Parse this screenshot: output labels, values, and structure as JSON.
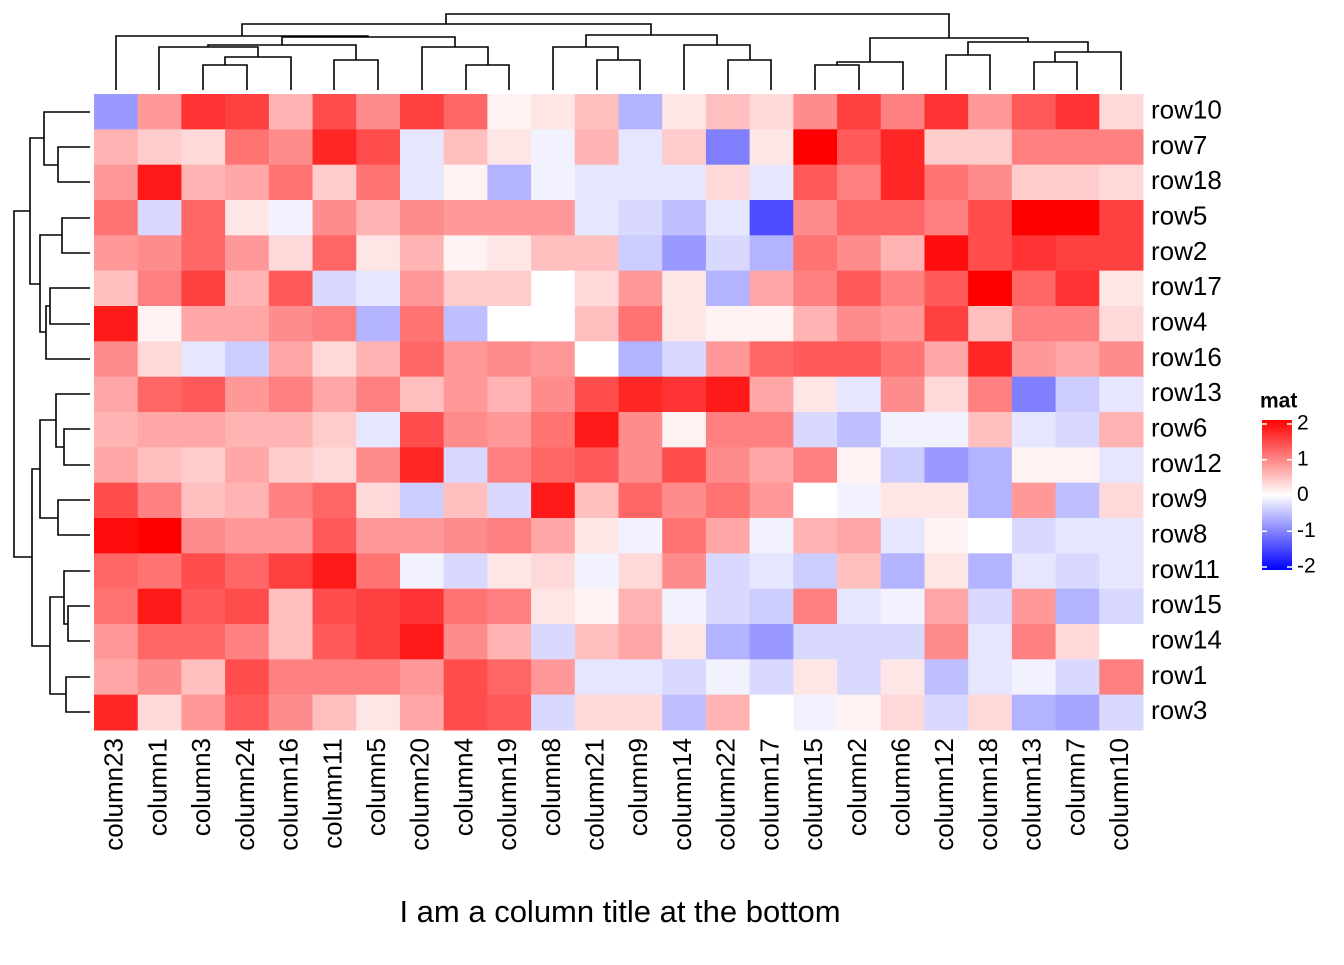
{
  "chart_data": {
    "type": "heatmap",
    "title": "I am a column title at the bottom",
    "legend_title": "mat",
    "x": [
      "column23",
      "column1",
      "column3",
      "column24",
      "column16",
      "column11",
      "column5",
      "column20",
      "column4",
      "column19",
      "column8",
      "column21",
      "column9",
      "column14",
      "column22",
      "column17",
      "column15",
      "column2",
      "column6",
      "column12",
      "column18",
      "column13",
      "column7",
      "column10"
    ],
    "y": [
      "row10",
      "row7",
      "row18",
      "row5",
      "row2",
      "row17",
      "row4",
      "row16",
      "row13",
      "row6",
      "row12",
      "row9",
      "row8",
      "row11",
      "row15",
      "row14",
      "row1",
      "row3"
    ],
    "values": [
      [
        -0.8,
        0.8,
        1.6,
        1.5,
        0.6,
        1.4,
        0.9,
        1.5,
        1.2,
        0.1,
        0.2,
        0.5,
        -0.6,
        0.2,
        0.5,
        0.3,
        0.9,
        1.5,
        1.0,
        1.6,
        0.8,
        1.3,
        1.6,
        0.3
      ],
      [
        0.6,
        0.4,
        0.3,
        1.1,
        0.9,
        1.7,
        1.4,
        -0.2,
        0.5,
        0.2,
        -0.1,
        0.6,
        -0.2,
        0.4,
        -1.0,
        0.2,
        2.0,
        1.3,
        1.7,
        0.4,
        0.4,
        1.0,
        1.0,
        1.0
      ],
      [
        0.8,
        1.8,
        0.6,
        0.7,
        1.1,
        0.4,
        1.1,
        -0.2,
        0.1,
        -0.6,
        -0.1,
        -0.2,
        -0.2,
        -0.2,
        0.3,
        -0.2,
        1.3,
        1.0,
        1.7,
        1.1,
        0.9,
        0.4,
        0.4,
        0.3
      ],
      [
        1.1,
        -0.3,
        1.2,
        0.2,
        -0.1,
        0.9,
        0.6,
        0.9,
        0.8,
        0.8,
        0.8,
        -0.2,
        -0.3,
        -0.5,
        -0.2,
        -1.4,
        0.9,
        1.2,
        1.2,
        1.0,
        1.4,
        2.0,
        2.0,
        1.5
      ],
      [
        0.8,
        0.9,
        1.2,
        0.8,
        0.3,
        1.2,
        0.2,
        0.6,
        0.1,
        0.2,
        0.5,
        0.5,
        -0.4,
        -0.8,
        -0.3,
        -0.6,
        1.1,
        0.9,
        0.6,
        1.9,
        1.4,
        1.6,
        1.5,
        1.5
      ],
      [
        0.5,
        1.0,
        1.5,
        0.6,
        1.3,
        -0.3,
        -0.2,
        0.8,
        0.4,
        0.4,
        0.0,
        0.3,
        0.8,
        0.2,
        -0.6,
        0.7,
        1.0,
        1.3,
        1.0,
        1.3,
        2.0,
        1.2,
        1.6,
        0.2
      ],
      [
        1.8,
        0.1,
        0.7,
        0.7,
        0.9,
        1.0,
        -0.6,
        1.1,
        -0.5,
        0.0,
        0.0,
        0.5,
        1.1,
        0.2,
        0.1,
        0.1,
        0.6,
        0.9,
        0.8,
        1.5,
        0.5,
        1.0,
        1.0,
        0.3
      ],
      [
        0.9,
        0.3,
        -0.2,
        -0.4,
        0.7,
        0.3,
        0.6,
        1.2,
        0.8,
        0.9,
        0.8,
        0.0,
        -0.6,
        -0.3,
        0.8,
        1.2,
        1.3,
        1.3,
        1.1,
        0.7,
        1.7,
        0.8,
        0.7,
        0.9
      ],
      [
        0.7,
        1.2,
        1.3,
        0.8,
        1.0,
        0.7,
        1.0,
        0.5,
        0.8,
        0.6,
        0.9,
        1.4,
        1.7,
        1.6,
        1.8,
        0.7,
        0.2,
        -0.2,
        0.9,
        0.3,
        1.0,
        -1.0,
        -0.4,
        -0.2
      ],
      [
        0.6,
        0.7,
        0.7,
        0.6,
        0.6,
        0.4,
        -0.2,
        1.4,
        0.9,
        0.8,
        1.1,
        1.8,
        0.9,
        0.1,
        1.0,
        1.0,
        -0.3,
        -0.5,
        -0.1,
        -0.1,
        0.5,
        -0.2,
        -0.3,
        0.6
      ],
      [
        0.7,
        0.5,
        0.4,
        0.7,
        0.4,
        0.3,
        0.9,
        1.7,
        -0.3,
        1.0,
        1.2,
        1.3,
        0.9,
        1.4,
        0.9,
        0.7,
        1.0,
        0.1,
        -0.4,
        -0.8,
        -0.6,
        0.1,
        0.1,
        -0.2
      ],
      [
        1.4,
        1.0,
        0.5,
        0.6,
        1.0,
        1.2,
        0.3,
        -0.4,
        0.5,
        -0.3,
        1.8,
        0.5,
        1.2,
        0.9,
        1.1,
        0.8,
        0.0,
        -0.1,
        0.2,
        0.2,
        -0.6,
        0.8,
        -0.5,
        0.3
      ],
      [
        1.9,
        2.0,
        0.9,
        0.8,
        0.8,
        1.3,
        0.8,
        0.8,
        0.9,
        1.0,
        0.7,
        0.2,
        -0.1,
        1.1,
        0.7,
        -0.1,
        0.6,
        0.7,
        -0.2,
        0.1,
        0.0,
        -0.3,
        -0.2,
        -0.2
      ],
      [
        1.2,
        1.1,
        1.4,
        1.2,
        1.5,
        1.8,
        1.1,
        -0.1,
        -0.3,
        0.2,
        0.3,
        -0.1,
        0.3,
        0.9,
        -0.3,
        -0.2,
        -0.4,
        0.5,
        -0.6,
        0.2,
        -0.6,
        -0.2,
        -0.3,
        -0.2
      ],
      [
        1.1,
        1.8,
        1.3,
        1.4,
        0.5,
        1.4,
        1.5,
        1.6,
        1.1,
        1.0,
        0.2,
        0.1,
        0.6,
        -0.1,
        -0.3,
        -0.4,
        1.0,
        -0.2,
        -0.1,
        0.7,
        -0.3,
        0.8,
        -0.6,
        -0.3
      ],
      [
        0.8,
        1.2,
        1.2,
        1.0,
        0.5,
        1.3,
        1.5,
        1.8,
        0.9,
        0.6,
        -0.3,
        0.5,
        0.7,
        0.2,
        -0.6,
        -0.8,
        -0.3,
        -0.3,
        -0.3,
        0.9,
        -0.2,
        1.0,
        0.3,
        0.0
      ],
      [
        0.7,
        0.9,
        0.5,
        1.4,
        1.0,
        1.0,
        1.0,
        0.8,
        1.4,
        1.2,
        0.8,
        -0.2,
        -0.2,
        -0.3,
        -0.1,
        -0.3,
        0.2,
        -0.3,
        0.2,
        -0.5,
        -0.2,
        -0.1,
        -0.3,
        1.0
      ],
      [
        1.7,
        0.3,
        0.8,
        1.3,
        0.9,
        0.5,
        0.2,
        0.7,
        1.4,
        1.3,
        -0.3,
        0.3,
        0.3,
        -0.5,
        0.6,
        0.0,
        -0.1,
        0.1,
        0.3,
        -0.3,
        0.3,
        -0.6,
        -0.7,
        -0.3
      ]
    ],
    "zlim": [
      -2,
      2
    ],
    "zticks": [
      2,
      1,
      0,
      -1,
      -2
    ],
    "low_color": "#0000ff",
    "mid_color": "#ffffff",
    "high_color": "#ff0000"
  }
}
